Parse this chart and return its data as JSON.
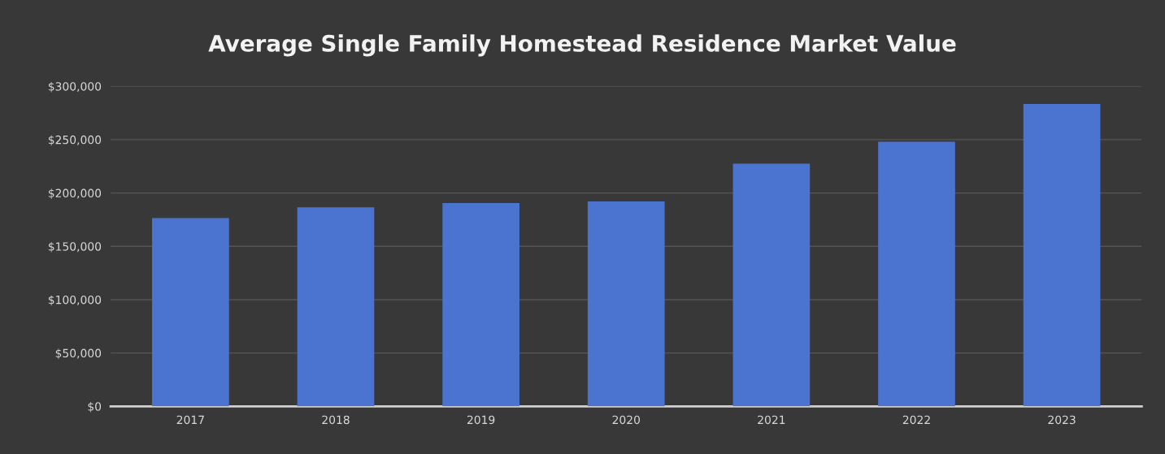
{
  "chart_data": {
    "type": "bar",
    "title": "Average Single Family Homestead Residence Market Value",
    "categories": [
      "2017",
      "2018",
      "2019",
      "2020",
      "2021",
      "2022",
      "2023"
    ],
    "values": [
      176500,
      186500,
      190500,
      192000,
      227500,
      248000,
      283500
    ],
    "color": "#4a74cf",
    "ylim": [
      0,
      300000
    ],
    "yticks": [
      {
        "value": 0,
        "label": "$0"
      },
      {
        "value": 50000,
        "label": "$50,000"
      },
      {
        "value": 100000,
        "label": "$100,000"
      },
      {
        "value": 150000,
        "label": "$150,000"
      },
      {
        "value": 200000,
        "label": "$200,000"
      },
      {
        "value": 250000,
        "label": "$250,000"
      },
      {
        "value": 300000,
        "label": "$300,000"
      }
    ],
    "grid": "y"
  }
}
